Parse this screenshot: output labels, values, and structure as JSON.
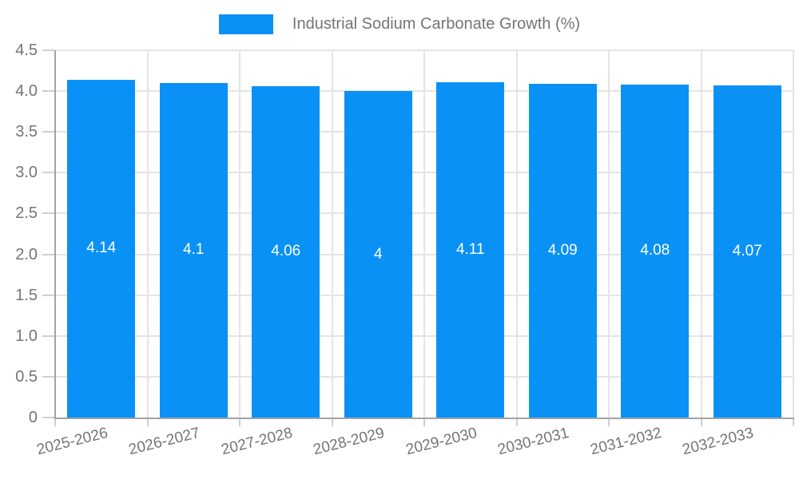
{
  "legend": {
    "label": "Industrial Sodium Carbonate Growth (%)"
  },
  "colors": {
    "bar": "#0a91f5",
    "axis_text": "#757575",
    "value_label": "#ffffff",
    "gridline": "#e4e4e4",
    "axis_line": "#a3a3a3"
  },
  "chart_data": {
    "type": "bar",
    "title": "",
    "xlabel": "",
    "ylabel": "",
    "categories": [
      "2025-2026",
      "2026-2027",
      "2027-2028",
      "2028-2029",
      "2029-2030",
      "2030-2031",
      "2031-2032",
      "2032-2033"
    ],
    "series": [
      {
        "name": "Industrial Sodium Carbonate Growth (%)",
        "values": [
          4.14,
          4.1,
          4.06,
          4,
          4.11,
          4.09,
          4.08,
          4.07
        ]
      }
    ],
    "value_labels": [
      "4.14",
      "4.1",
      "4.06",
      "4",
      "4.11",
      "4.09",
      "4.08",
      "4.07"
    ],
    "ylim": [
      0,
      4.5
    ],
    "ytick_step": 0.5,
    "ytick_labels": [
      "0",
      "0.5",
      "1.0",
      "1.5",
      "2.0",
      "2.5",
      "3.0",
      "3.5",
      "4.0",
      "4.5"
    ],
    "grid": true,
    "legend_position": "top",
    "x_label_rotation_deg": -14
  }
}
